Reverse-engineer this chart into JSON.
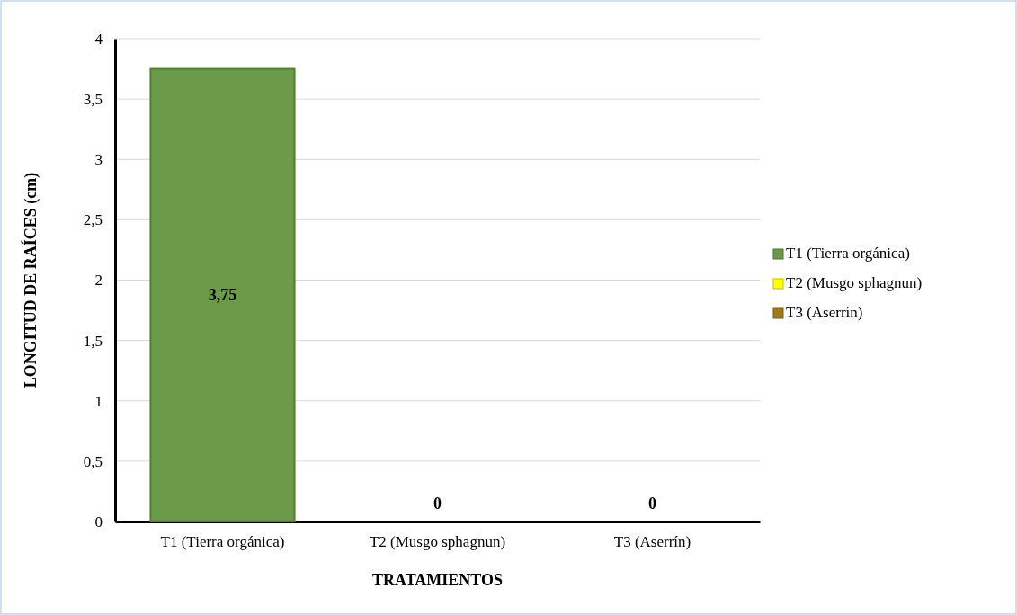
{
  "chart_data": {
    "type": "bar",
    "xlabel": "TRATAMIENTOS",
    "ylabel": "LONGITUD DE RAÍCES (cm)",
    "categories": [
      "T1 (Tierra orgánica)",
      "T2 (Musgo sphagnun)",
      "T3 (Aserrín)"
    ],
    "series": [
      {
        "name": "T1 (Tierra orgánica)",
        "color": "#6b9a48",
        "values": [
          3.75,
          null,
          null
        ],
        "value_labels": [
          "3,75",
          null,
          null
        ]
      },
      {
        "name": "T2 (Musgo sphagnun)",
        "color": "#ffff00",
        "values": [
          null,
          0,
          null
        ],
        "value_labels": [
          null,
          "0",
          null
        ]
      },
      {
        "name": "T3 (Aserrín)",
        "color": "#a07a1e",
        "values": [
          null,
          null,
          0
        ],
        "value_labels": [
          null,
          null,
          "0"
        ]
      }
    ],
    "ylim": [
      0,
      4
    ],
    "yticks": [
      0,
      {
        "value": 0.5,
        "label": "0,5"
      },
      1,
      {
        "value": 1.5,
        "label": "1,5"
      },
      2,
      {
        "value": 2.5,
        "label": "2,5"
      },
      3,
      {
        "value": 3.5,
        "label": "3,5"
      },
      4
    ],
    "grid": "y",
    "legend": "right"
  }
}
